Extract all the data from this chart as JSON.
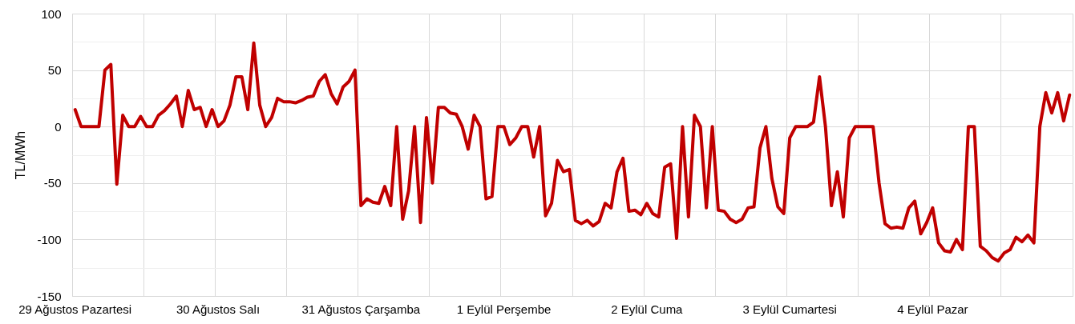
{
  "chart_data": {
    "type": "line",
    "ylabel": "TL/MWh",
    "color": "#c00000",
    "grid": true,
    "ylim": [
      -150,
      100
    ],
    "yticks": [
      -150,
      {
        "value": -125,
        "label": null
      },
      -100,
      {
        "value": -75,
        "label": null
      },
      -50,
      {
        "value": -25,
        "label": null
      },
      0,
      {
        "value": 25,
        "label": null
      },
      50,
      {
        "value": 75,
        "label": null
      },
      100
    ],
    "categories": [
      "29 Ağustos Pazartesi",
      null,
      null,
      null,
      null,
      null,
      null,
      null,
      null,
      null,
      null,
      null,
      null,
      null,
      null,
      null,
      null,
      null,
      null,
      null,
      null,
      null,
      null,
      null,
      "30 Ağustos Salı",
      null,
      null,
      null,
      null,
      null,
      null,
      null,
      null,
      null,
      null,
      null,
      null,
      null,
      null,
      null,
      null,
      null,
      null,
      null,
      null,
      null,
      null,
      null,
      "31 Ağustos Çarşamba",
      null,
      null,
      null,
      null,
      null,
      null,
      null,
      null,
      null,
      null,
      null,
      null,
      null,
      null,
      null,
      null,
      null,
      null,
      null,
      null,
      null,
      null,
      null,
      "1 Eylül Perşembe",
      null,
      null,
      null,
      null,
      null,
      null,
      null,
      null,
      null,
      null,
      null,
      null,
      null,
      null,
      null,
      null,
      null,
      null,
      null,
      null,
      null,
      null,
      null,
      "2 Eylül Cuma",
      null,
      null,
      null,
      null,
      null,
      null,
      null,
      null,
      null,
      null,
      null,
      null,
      null,
      null,
      null,
      null,
      null,
      null,
      null,
      null,
      null,
      null,
      null,
      "3 Eylül Cumartesi",
      null,
      null,
      null,
      null,
      null,
      null,
      null,
      null,
      null,
      null,
      null,
      null,
      null,
      null,
      null,
      null,
      null,
      null,
      null,
      null,
      null,
      null,
      null,
      "4 Eylül Pazar",
      null,
      null,
      null,
      null,
      null,
      null,
      null,
      null,
      null,
      null,
      null,
      null,
      null,
      null,
      null,
      null,
      null,
      null,
      null,
      null,
      null,
      null,
      null
    ],
    "values": [
      15,
      0,
      0,
      0,
      0,
      50,
      55,
      -51,
      10,
      0,
      0,
      9,
      0,
      0,
      10,
      14,
      20,
      27,
      0,
      32,
      15,
      17,
      0,
      15,
      0,
      5,
      19,
      44,
      44,
      15,
      74,
      19,
      0,
      8,
      25,
      22,
      22,
      21,
      23,
      26,
      27,
      40,
      46,
      29,
      20,
      35,
      40,
      50,
      -70,
      -64,
      -67,
      -68,
      -53,
      -70,
      0,
      -82,
      -57,
      0,
      -85,
      8,
      -50,
      17,
      17,
      12,
      11,
      0,
      -20,
      10,
      0,
      -64,
      -62,
      0,
      0,
      -16,
      -10,
      0,
      0,
      -27,
      0,
      -79,
      -68,
      -30,
      -40,
      -38,
      -83,
      -86,
      -83,
      -88,
      -84,
      -68,
      -72,
      -40,
      -28,
      -75,
      -74,
      -78,
      -68,
      -77,
      -80,
      -36,
      -33,
      -99,
      0,
      -80,
      10,
      0,
      -72,
      0,
      -74,
      -75,
      -82,
      -85,
      -82,
      -72,
      -71,
      -19,
      0,
      -46,
      -71,
      -77,
      -10,
      0,
      0,
      0,
      4,
      44,
      0,
      -70,
      -40,
      -80,
      -10,
      0,
      0,
      0,
      0,
      -50,
      -86,
      -90,
      -89,
      -90,
      -72,
      -66,
      -95,
      -85,
      -72,
      -103,
      -110,
      -111,
      -100,
      -109,
      0,
      0,
      -106,
      -110,
      -116,
      -119,
      -112,
      -109,
      -98,
      -102,
      -96,
      -103,
      0,
      30,
      12,
      30,
      5,
      28
    ]
  }
}
